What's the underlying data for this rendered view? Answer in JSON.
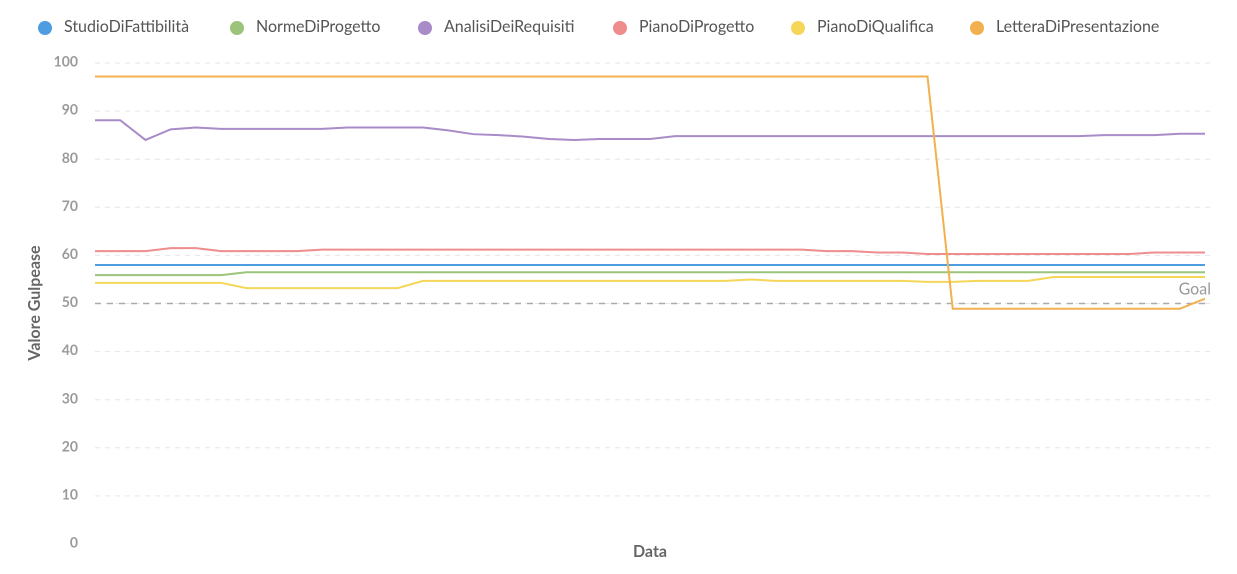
{
  "chart_data": {
    "type": "line",
    "xlabel": "Data",
    "ylabel": "Valore Gulpease",
    "categories": [
      null,
      null,
      null,
      null,
      null,
      null,
      null,
      null,
      null,
      null,
      null,
      null,
      null,
      null,
      null,
      null,
      null,
      null,
      null,
      null,
      null,
      null,
      null,
      null,
      null,
      null,
      null,
      null,
      null,
      null,
      null,
      null,
      null,
      null,
      null,
      null,
      null,
      null,
      null,
      null,
      null,
      null,
      null,
      null,
      null
    ],
    "ylim": [
      0,
      100
    ],
    "yticks": [
      0,
      10,
      20,
      30,
      40,
      50,
      60,
      70,
      80,
      90,
      100
    ],
    "grid": true,
    "legend": "top",
    "goal": {
      "value": 50,
      "label": "Goal"
    },
    "series": [
      {
        "name": "StudioDiFattibilità",
        "color": "#4e9de0",
        "values": [
          58,
          58,
          58,
          58,
          58,
          58,
          58,
          58,
          58,
          58,
          58,
          58,
          58,
          58,
          58,
          58,
          58,
          58,
          58,
          58,
          58,
          58,
          58,
          58,
          58,
          58,
          58,
          58,
          58,
          58,
          58,
          58,
          58,
          58,
          58,
          58,
          58,
          58,
          58,
          58,
          58,
          58,
          58,
          58,
          58
        ]
      },
      {
        "name": "NormeDiProgetto",
        "color": "#9bc47a",
        "values": [
          55.9,
          55.9,
          55.9,
          55.9,
          55.9,
          55.9,
          56.5,
          56.5,
          56.5,
          56.5,
          56.5,
          56.5,
          56.5,
          56.5,
          56.5,
          56.5,
          56.5,
          56.5,
          56.5,
          56.5,
          56.5,
          56.5,
          56.5,
          56.5,
          56.5,
          56.5,
          56.5,
          56.5,
          56.5,
          56.5,
          56.5,
          56.5,
          56.5,
          56.5,
          56.5,
          56.5,
          56.5,
          56.5,
          56.5,
          56.5,
          56.5,
          56.5,
          56.5,
          56.5,
          56.5
        ]
      },
      {
        "name": "AnalisiDeiRequisiti",
        "color": "#a98bc8",
        "values": [
          88.1,
          88.1,
          84,
          86.2,
          86.6,
          86.3,
          86.3,
          86.3,
          86.3,
          86.3,
          86.6,
          86.6,
          86.6,
          86.6,
          86,
          85.2,
          85,
          84.7,
          84.2,
          84,
          84.2,
          84.2,
          84.2,
          84.8,
          84.8,
          84.8,
          84.8,
          84.8,
          84.8,
          84.8,
          84.8,
          84.8,
          84.8,
          84.8,
          84.8,
          84.8,
          84.8,
          84.8,
          84.8,
          84.8,
          85,
          85,
          85,
          85.3,
          85.3
        ]
      },
      {
        "name": "PianoDiProgetto",
        "color": "#ef8c8c",
        "values": [
          60.9,
          60.9,
          60.9,
          61.5,
          61.5,
          60.9,
          60.9,
          60.9,
          60.9,
          61.2,
          61.2,
          61.2,
          61.2,
          61.2,
          61.2,
          61.2,
          61.2,
          61.2,
          61.2,
          61.2,
          61.2,
          61.2,
          61.2,
          61.2,
          61.2,
          61.2,
          61.2,
          61.2,
          61.2,
          60.9,
          60.9,
          60.6,
          60.6,
          60.3,
          60.3,
          60.3,
          60.3,
          60.3,
          60.3,
          60.3,
          60.3,
          60.3,
          60.6,
          60.6,
          60.6
        ]
      },
      {
        "name": "PianoDiQualifica",
        "color": "#f5d659",
        "values": [
          54.3,
          54.3,
          54.3,
          54.3,
          54.3,
          54.3,
          53.2,
          53.2,
          53.2,
          53.2,
          53.2,
          53.2,
          53.2,
          54.7,
          54.7,
          54.7,
          54.7,
          54.7,
          54.7,
          54.7,
          54.7,
          54.7,
          54.7,
          54.7,
          54.7,
          54.7,
          55,
          54.7,
          54.7,
          54.7,
          54.7,
          54.7,
          54.7,
          54.5,
          54.5,
          54.7,
          54.7,
          54.7,
          55.5,
          55.5,
          55.5,
          55.5,
          55.5,
          55.5,
          55.5
        ]
      },
      {
        "name": "LetteraDiPresentazione",
        "color": "#f2b04e",
        "values": [
          97.2,
          97.2,
          97.2,
          97.2,
          97.2,
          97.2,
          97.2,
          97.2,
          97.2,
          97.2,
          97.2,
          97.2,
          97.2,
          97.2,
          97.2,
          97.2,
          97.2,
          97.2,
          97.2,
          97.2,
          97.2,
          97.2,
          97.2,
          97.2,
          97.2,
          97.2,
          97.2,
          97.2,
          97.2,
          97.2,
          97.2,
          97.2,
          97.2,
          97.2,
          48.9,
          48.9,
          48.9,
          48.9,
          48.9,
          48.9,
          48.9,
          48.9,
          48.9,
          48.9,
          51
        ]
      }
    ]
  }
}
